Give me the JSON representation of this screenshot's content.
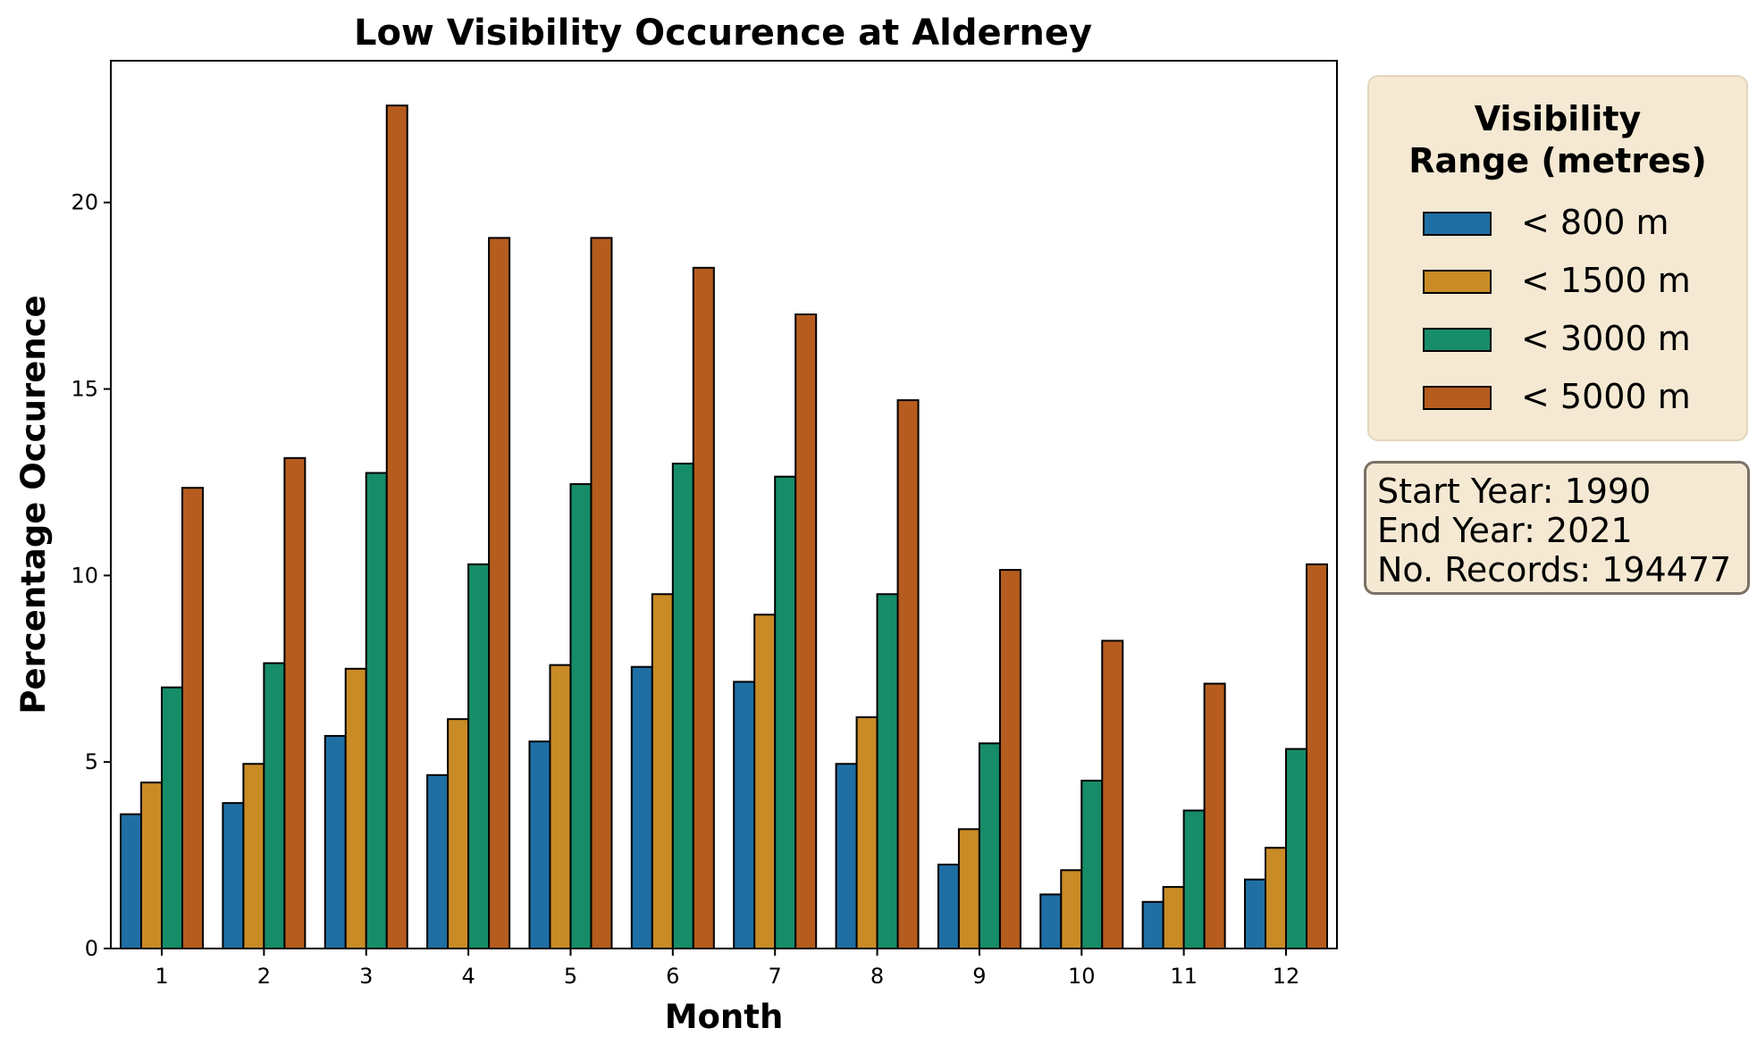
{
  "chart_data": {
    "type": "bar",
    "title": "Low Visibility Occurence at Alderney",
    "xlabel": "Month",
    "ylabel": "Percentage Occurence",
    "ylim": [
      0,
      23.8
    ],
    "yticks": [
      0,
      5,
      10,
      15,
      20
    ],
    "grid": false,
    "categories": [
      "1",
      "2",
      "3",
      "4",
      "5",
      "6",
      "7",
      "8",
      "9",
      "10",
      "11",
      "12"
    ],
    "series": [
      {
        "name": "< 800 m",
        "color": "#1f6fa4",
        "values": [
          3.6,
          3.9,
          5.7,
          4.65,
          5.55,
          7.55,
          7.15,
          4.95,
          2.25,
          1.45,
          1.25,
          1.85
        ]
      },
      {
        "name": "< 1500 m",
        "color": "#c88b26",
        "values": [
          4.45,
          4.95,
          7.5,
          6.15,
          7.6,
          9.5,
          8.95,
          6.2,
          3.2,
          2.1,
          1.65,
          2.7
        ]
      },
      {
        "name": "< 3000 m",
        "color": "#178c69",
        "values": [
          7.0,
          7.65,
          12.75,
          10.3,
          12.45,
          13.0,
          12.65,
          9.5,
          5.5,
          4.5,
          3.7,
          5.35
        ]
      },
      {
        "name": "< 5000 m",
        "color": "#b55c1e",
        "values": [
          12.35,
          13.15,
          22.6,
          19.05,
          19.05,
          18.25,
          17.0,
          14.7,
          10.15,
          8.25,
          7.1,
          10.3
        ]
      }
    ],
    "legend": {
      "title_lines": [
        "Visibility",
        "Range (metres)"
      ],
      "placement": "right"
    }
  },
  "info": {
    "start_year": "Start Year: 1990",
    "end_year": "End Year: 2021",
    "records": "No. Records: 194477"
  }
}
